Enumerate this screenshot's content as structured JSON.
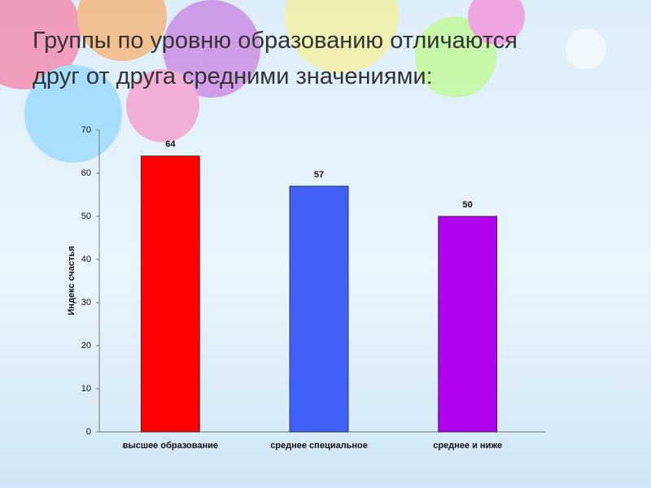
{
  "chart_data": {
    "type": "bar",
    "title": "Группы по уровню образованию отличаются друг от друга средними значениями:",
    "ylabel": "Индекс счастья",
    "categories": [
      "высшее образование",
      "среднее специальное",
      "среднее и ниже"
    ],
    "values": [
      64,
      57,
      50
    ],
    "colors": [
      "#ff0000",
      "#4060f8",
      "#b000f0"
    ],
    "ylim": [
      0,
      70
    ],
    "yticks": [
      0,
      10,
      20,
      30,
      40,
      50,
      60,
      70
    ],
    "grid": false
  }
}
